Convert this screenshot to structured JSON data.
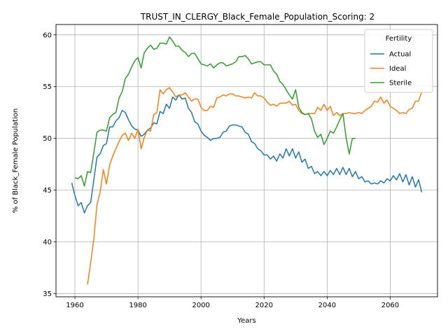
{
  "chart_data": {
    "type": "line",
    "title": "TRUST_IN_CLERGY_Black_Female_Population_Scoring: 2",
    "xlabel": "Years",
    "ylabel": "% of Black_Female Population",
    "xlim": [
      1954,
      2075
    ],
    "ylim": [
      34.7,
      61
    ],
    "xticks": [
      1960,
      1980,
      2000,
      2020,
      2040,
      2060
    ],
    "yticks": [
      35,
      40,
      45,
      50,
      55,
      60
    ],
    "grid": true,
    "legend": {
      "title": "Fertility",
      "placement": "top-right"
    },
    "series": [
      {
        "name": "Actual",
        "color": "#1f77b4",
        "x": [
          1959,
          1960,
          1961,
          1962,
          1963,
          1964,
          1965,
          1966,
          1967,
          1968,
          1969,
          1970,
          1971,
          1972,
          1973,
          1974,
          1975,
          1976,
          1977,
          1978,
          1979,
          1980,
          1981,
          1982,
          1983,
          1984,
          1985,
          1986,
          1987,
          1988,
          1989,
          1990,
          1991,
          1992,
          1993,
          1994,
          1995,
          1996,
          1997,
          1998,
          1999,
          2000,
          2001,
          2002,
          2003,
          2004,
          2005,
          2006,
          2007,
          2008,
          2009,
          2010,
          2011,
          2012,
          2013,
          2014,
          2015,
          2016,
          2017,
          2018,
          2019,
          2020,
          2021,
          2022,
          2023,
          2024,
          2025,
          2026,
          2027,
          2028,
          2029,
          2030,
          2031,
          2032,
          2033,
          2034,
          2035,
          2036,
          2037,
          2038,
          2039,
          2040,
          2041,
          2042,
          2043,
          2044,
          2045,
          2046,
          2047,
          2048,
          2049,
          2050,
          2051,
          2052,
          2053,
          2054,
          2055,
          2056,
          2057,
          2058,
          2059,
          2060,
          2061,
          2062,
          2063,
          2064,
          2065,
          2066,
          2067,
          2068,
          2069,
          2070
        ],
        "values": [
          45.7,
          44.5,
          43.5,
          43.8,
          42.8,
          43.5,
          43.8,
          46.0,
          48.2,
          48.5,
          49.3,
          49.5,
          51.1,
          51.1,
          51.7,
          52.0,
          52.7,
          52.5,
          51.8,
          51.2,
          50.9,
          50.8,
          50.2,
          50.4,
          50.8,
          51.0,
          51.5,
          51.4,
          52.6,
          52.4,
          53.3,
          52.9,
          54.0,
          53.7,
          54.2,
          53.8,
          53.9,
          52.9,
          52.5,
          51.6,
          51.4,
          50.7,
          50.3,
          50.1,
          49.8,
          50.0,
          50.0,
          50.1,
          50.6,
          50.7,
          51.2,
          51.3,
          51.3,
          51.2,
          51.1,
          50.6,
          50.4,
          49.7,
          49.5,
          49.0,
          48.8,
          48.4,
          48.4,
          48.0,
          48.3,
          47.8,
          48.5,
          48.1,
          49.0,
          48.3,
          49.0,
          48.1,
          48.7,
          47.7,
          48.0,
          47.1,
          47.3,
          46.6,
          46.8,
          46.4,
          46.8,
          46.4,
          46.9,
          46.5,
          47.1,
          46.5,
          47.2,
          46.5,
          47.1,
          46.3,
          46.8,
          46.1,
          46.3,
          45.8,
          45.9,
          45.6,
          45.7,
          45.6,
          45.9,
          45.7,
          46.1,
          45.9,
          46.4,
          46.0,
          46.6,
          45.8,
          46.5,
          45.5,
          46.3,
          45.3,
          46.0,
          44.8
        ]
      },
      {
        "name": "Ideal",
        "color": "#ff7f0e",
        "x": [
          1964,
          1965,
          1966,
          1967,
          1968,
          1969,
          1970,
          1971,
          1972,
          1973,
          1974,
          1975,
          1976,
          1977,
          1978,
          1979,
          1980,
          1981,
          1982,
          1983,
          1984,
          1985,
          1986,
          1987,
          1988,
          1989,
          1990,
          1991,
          1992,
          1993,
          1994,
          1995,
          1996,
          1997,
          1998,
          1999,
          2000,
          2001,
          2002,
          2003,
          2004,
          2005,
          2006,
          2007,
          2008,
          2009,
          2010,
          2011,
          2012,
          2013,
          2014,
          2015,
          2016,
          2017,
          2018,
          2019,
          2020,
          2021,
          2022,
          2023,
          2024,
          2025,
          2026,
          2027,
          2028,
          2029,
          2030,
          2031,
          2032,
          2033,
          2034,
          2035,
          2036,
          2037,
          2038,
          2039,
          2040,
          2041,
          2042,
          2043,
          2044,
          2045,
          2046,
          2047,
          2048,
          2049,
          2050,
          2051,
          2052,
          2053,
          2054,
          2055,
          2056,
          2057,
          2058,
          2059,
          2060,
          2061,
          2062,
          2063,
          2064,
          2065,
          2066,
          2067,
          2068,
          2069,
          2070
        ],
        "values": [
          35.9,
          38.0,
          40.3,
          43.6,
          44.8,
          47.0,
          45.6,
          47.4,
          48.3,
          49.0,
          49.7,
          50.3,
          50.5,
          49.8,
          50.5,
          50.0,
          50.9,
          49.0,
          50.1,
          50.8,
          50.7,
          52.3,
          52.5,
          54.7,
          54.3,
          54.7,
          54.9,
          54.5,
          54.0,
          54.2,
          54.2,
          54.4,
          54.0,
          53.6,
          53.8,
          53.8,
          53.0,
          52.7,
          52.7,
          53.1,
          53.0,
          53.9,
          54.0,
          54.2,
          54.1,
          54.3,
          54.3,
          54.1,
          54.1,
          54.0,
          53.9,
          54.0,
          53.9,
          54.4,
          54.1,
          54.1,
          53.9,
          53.5,
          53.2,
          53.3,
          53.1,
          53.4,
          53.4,
          53.4,
          53.6,
          53.2,
          53.3,
          52.7,
          52.4,
          52.3,
          52.4,
          52.4,
          52.4,
          53.0,
          52.7,
          53.3,
          52.7,
          53.1,
          52.2,
          52.5,
          52.2,
          52.4,
          52.4,
          52.5,
          52.4,
          52.4,
          52.5,
          52.4,
          52.7,
          52.9,
          53.1,
          53.6,
          53.5,
          54.0,
          53.4,
          53.7,
          53.1,
          52.9,
          52.7,
          52.4,
          52.5,
          52.4,
          52.8,
          52.9,
          53.6,
          53.6,
          54.5
        ]
      },
      {
        "name": "Sterile",
        "color": "#2ca02c",
        "x": [
          1960,
          1961,
          1962,
          1963,
          1964,
          1965,
          1966,
          1967,
          1968,
          1969,
          1970,
          1971,
          1972,
          1973,
          1974,
          1975,
          1976,
          1977,
          1978,
          1979,
          1980,
          1981,
          1982,
          1983,
          1984,
          1985,
          1986,
          1987,
          1988,
          1989,
          1990,
          1991,
          1992,
          1993,
          1994,
          1995,
          1996,
          1997,
          1998,
          1999,
          2000,
          2001,
          2002,
          2003,
          2004,
          2005,
          2006,
          2007,
          2008,
          2009,
          2010,
          2011,
          2012,
          2013,
          2014,
          2015,
          2016,
          2017,
          2018,
          2019,
          2020,
          2021,
          2022,
          2023,
          2024,
          2025,
          2026,
          2027,
          2028,
          2029,
          2030,
          2031,
          2032,
          2033,
          2034,
          2035,
          2036,
          2037,
          2038,
          2039,
          2040,
          2041,
          2042,
          2043,
          2044,
          2045,
          2046,
          2047,
          2048,
          2049
        ],
        "values": [
          46.2,
          46.1,
          46.4,
          45.4,
          46.8,
          46.7,
          48.6,
          50.6,
          50.8,
          50.8,
          50.7,
          52.0,
          52.3,
          52.5,
          53.9,
          54.5,
          55.8,
          56.2,
          56.9,
          57.5,
          57.8,
          56.8,
          58.3,
          58.7,
          59.0,
          58.6,
          58.7,
          59.2,
          59.2,
          59.1,
          59.8,
          59.4,
          58.9,
          58.9,
          58.5,
          58.3,
          57.9,
          58.2,
          58.2,
          57.7,
          57.2,
          57.1,
          57.0,
          57.2,
          56.8,
          57.1,
          57.3,
          57.3,
          57.0,
          57.1,
          57.2,
          57.4,
          57.9,
          57.9,
          58.0,
          57.7,
          57.2,
          57.3,
          57.4,
          57.4,
          57.1,
          57.1,
          57.1,
          56.5,
          56.2,
          55.5,
          55.2,
          54.7,
          54.2,
          53.8,
          54.7,
          53.0,
          52.5,
          52.3,
          52.4,
          51.9,
          50.7,
          50.1,
          50.4,
          49.4,
          50.0,
          50.7,
          50.5,
          51.1,
          51.8,
          52.4,
          50.1,
          48.5,
          50.0,
          50.0
        ]
      }
    ]
  }
}
